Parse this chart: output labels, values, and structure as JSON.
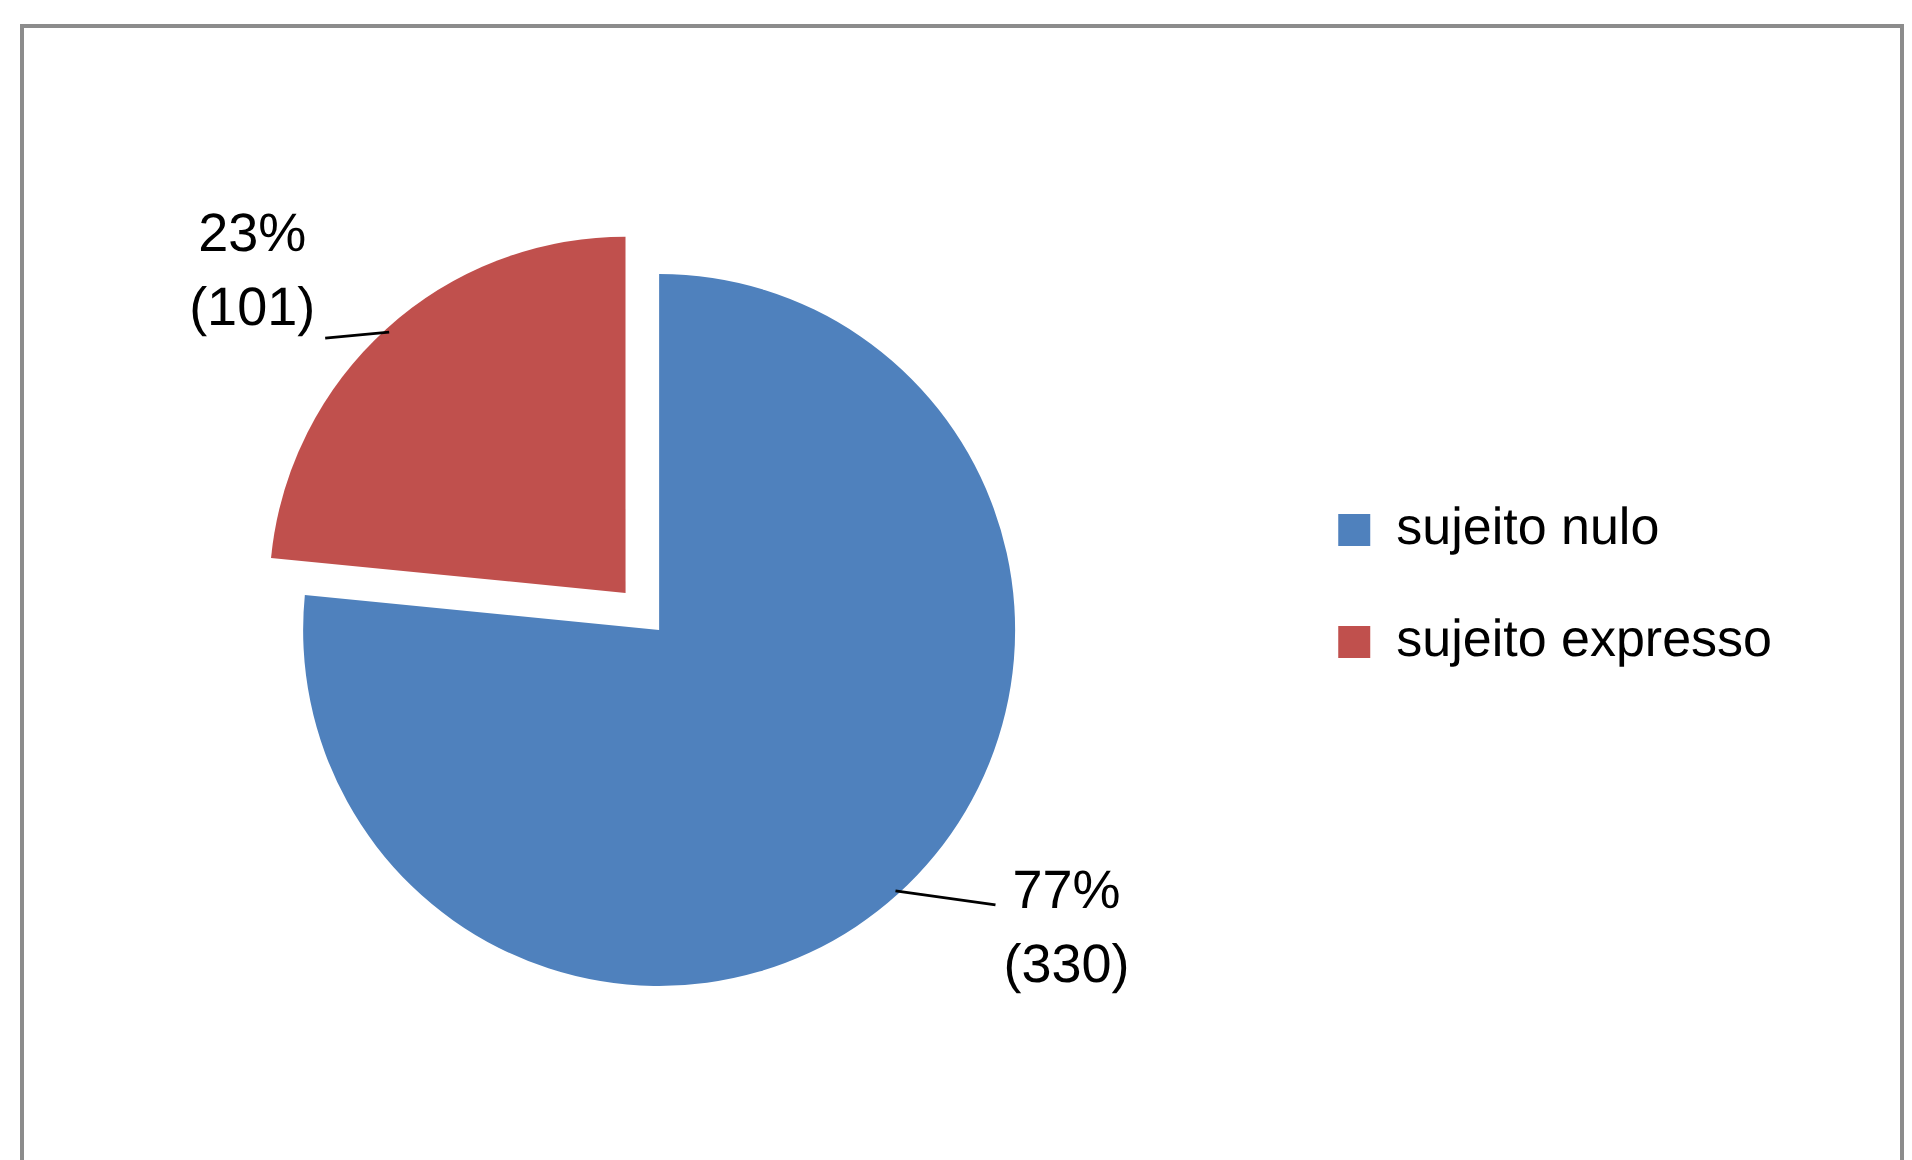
{
  "chart_data": {
    "type": "pie",
    "categories": [
      "sujeito nulo",
      "sujeito expresso"
    ],
    "values": [
      330,
      101
    ],
    "colors": [
      "#4f81bd",
      "#c0504d"
    ],
    "value_labels": [
      "77%\n(330)",
      "23%\n(101)"
    ],
    "legend": "right"
  }
}
